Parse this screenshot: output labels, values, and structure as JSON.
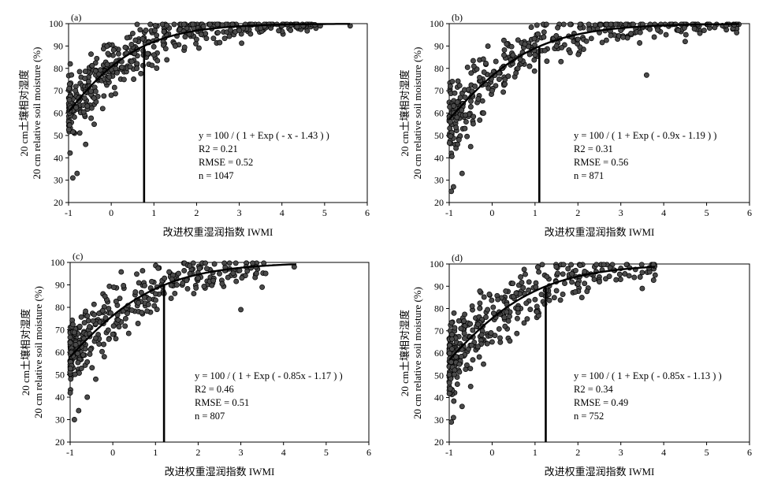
{
  "chart_data": [
    {
      "type": "scatter",
      "panel_label": "(a)",
      "xlabel": "改进权重湿润指数 IWMI",
      "ylabel_cn": "20 cm土壤相对湿度",
      "ylabel_en": "20 cm relative soil moisture (%)",
      "xlim": [
        -1,
        6
      ],
      "ylim": [
        20,
        100
      ],
      "x_ticks": [
        "-1",
        "0",
        "1",
        "2",
        "3",
        "4",
        "5",
        "6"
      ],
      "y_ticks": [
        "20",
        "30",
        "40",
        "50",
        "60",
        "70",
        "80",
        "90",
        "100"
      ],
      "fit": {
        "a": 1.0,
        "b": 1.43,
        "xmax": 5.6
      },
      "threshold_x": 0.77,
      "annotation": {
        "formula": "y = 100 / ( 1 + Exp ( - x - 1.43 ) )",
        "r2": "R2 = 0.21",
        "rmse": "RMSE = 0.52",
        "n": "n = 1047"
      },
      "cloud": {
        "n": 430,
        "seed": 11,
        "noise": 9,
        "xmin": -1.0,
        "xmax": 4.8,
        "decay": 0.9
      },
      "series": [
        {
          "x": [
            -0.9,
            -0.8,
            -0.6,
            -0.4,
            -0.2,
            0.0,
            0.3,
            0.6,
            1.0,
            1.5,
            2.0,
            2.5,
            3.0,
            3.5,
            4.0,
            4.5,
            4.9,
            5.6
          ],
          "y": [
            31,
            33,
            46,
            55,
            62,
            68,
            75,
            80,
            86,
            90,
            93,
            96,
            97,
            98,
            99,
            99,
            99,
            99
          ]
        }
      ]
    },
    {
      "type": "scatter",
      "panel_label": "(b)",
      "xlabel": "改进权重湿润指数 IWMI",
      "ylabel_cn": "20 cm土壤相对湿度",
      "ylabel_en": "20 cm relative soil moisture (%)",
      "xlim": [
        -1,
        6
      ],
      "ylim": [
        20,
        100
      ],
      "x_ticks": [
        "-1",
        "0",
        "1",
        "2",
        "3",
        "4",
        "5",
        "6"
      ],
      "y_ticks": [
        "20",
        "30",
        "40",
        "50",
        "60",
        "70",
        "80",
        "90",
        "100"
      ],
      "fit": {
        "a": 0.9,
        "b": 1.19,
        "xmax": 5.75
      },
      "threshold_x": 1.1,
      "annotation": {
        "formula": "y = 100 / ( 1 + Exp ( - 0.9x - 1.19 ) )",
        "r2": "R2 = 0.31",
        "rmse": "RMSE = 0.56",
        "n": "n = 871"
      },
      "cloud": {
        "n": 380,
        "seed": 23,
        "noise": 10,
        "xmin": -1.0,
        "xmax": 5.8,
        "decay": 0.85
      },
      "series": [
        {
          "x": [
            -0.95,
            -0.9,
            -0.7,
            -0.5,
            -0.2,
            0.0,
            0.3,
            0.6,
            1.0,
            1.5,
            2.0,
            2.5,
            3.0,
            3.6,
            4.5,
            5.7
          ],
          "y": [
            25,
            27,
            33,
            45,
            60,
            70,
            75,
            80,
            86,
            90,
            93,
            96,
            97,
            77,
            92,
            96
          ]
        }
      ]
    },
    {
      "type": "scatter",
      "panel_label": "(c)",
      "xlabel": "改进权重湿润指数 IWMI",
      "ylabel_cn": "20 cm土壤相对湿度",
      "ylabel_en": "20 cm relative soil moisture (%)",
      "xlim": [
        -1,
        6
      ],
      "ylim": [
        20,
        100
      ],
      "x_ticks": [
        "-1",
        "0",
        "1",
        "2",
        "3",
        "4",
        "5",
        "6"
      ],
      "y_ticks": [
        "20",
        "30",
        "40",
        "50",
        "60",
        "70",
        "80",
        "90",
        "100"
      ],
      "fit": {
        "a": 0.85,
        "b": 1.17,
        "xmax": 4.3
      },
      "threshold_x": 1.2,
      "annotation": {
        "formula": "y = 100 / ( 1 + Exp ( - 0.85x - 1.17 ) )",
        "r2": "R2 = 0.46",
        "rmse": "RMSE = 0.51",
        "n": "n = 807"
      },
      "cloud": {
        "n": 360,
        "seed": 37,
        "noise": 9,
        "xmin": -1.0,
        "xmax": 3.6,
        "decay": 1.3
      },
      "series": [
        {
          "x": [
            -0.9,
            -0.8,
            -0.6,
            -0.4,
            -0.2,
            0.0,
            0.3,
            0.6,
            1.0,
            1.5,
            2.0,
            2.5,
            3.0,
            3.5,
            4.25
          ],
          "y": [
            30,
            34,
            40,
            48,
            58,
            68,
            75,
            82,
            86,
            90,
            93,
            95,
            79,
            89,
            98
          ]
        }
      ]
    },
    {
      "type": "scatter",
      "panel_label": "(d)",
      "xlabel": "改进权重湿润指数 IWMI",
      "ylabel_cn": "20 cm土壤相对湿度",
      "ylabel_en": "20 cm relative soil moisture (%)",
      "xlim": [
        -1,
        6
      ],
      "ylim": [
        20,
        100
      ],
      "x_ticks": [
        "-1",
        "0",
        "1",
        "2",
        "3",
        "4",
        "5",
        "6"
      ],
      "y_ticks": [
        "20",
        "30",
        "40",
        "50",
        "60",
        "70",
        "80",
        "90",
        "100"
      ],
      "fit": {
        "a": 0.85,
        "b": 1.13,
        "xmax": 3.8
      },
      "threshold_x": 1.25,
      "annotation": {
        "formula": "y = 100 / ( 1 + Exp ( - 0.85x - 1.13 ) )",
        "r2": "R2 = 0.34",
        "rmse": "RMSE = 0.49",
        "n": "n = 752"
      },
      "cloud": {
        "n": 360,
        "seed": 53,
        "noise": 11,
        "xmin": -1.0,
        "xmax": 3.8,
        "decay": 1.4
      },
      "series": [
        {
          "x": [
            -0.95,
            -0.9,
            -0.7,
            -0.5,
            -0.2,
            0.0,
            0.3,
            0.6,
            1.0,
            1.5,
            2.0,
            2.5,
            3.0,
            3.5,
            3.8
          ],
          "y": [
            29,
            31,
            36,
            45,
            55,
            65,
            72,
            80,
            84,
            88,
            91,
            92,
            98,
            89,
            95
          ]
        }
      ]
    }
  ]
}
